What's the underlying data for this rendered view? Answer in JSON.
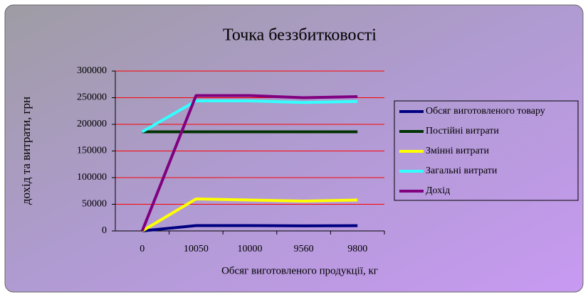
{
  "chart_data": {
    "type": "line",
    "title": "Точка беззбитковості",
    "xlabel": "Обсяг виготовленого продукції, кг",
    "ylabel": "дохід та витрати, грн",
    "categories": [
      "0",
      "10050",
      "10000",
      "9560",
      "9800"
    ],
    "series": [
      {
        "name": "Обсяг виготовленого товару",
        "color": "#000080",
        "values": [
          0,
          10050,
          10000,
          9560,
          9800
        ]
      },
      {
        "name": "Постійні витрати",
        "color": "#003300",
        "values": [
          186000,
          186000,
          186000,
          186000,
          186000
        ]
      },
      {
        "name": "Змінні витрати",
        "color": "#ffff00",
        "values": [
          0,
          60000,
          58000,
          56000,
          58000
        ]
      },
      {
        "name": "Загальні витрати",
        "color": "#33ffff",
        "values": [
          186000,
          244000,
          244000,
          241000,
          243000
        ]
      },
      {
        "name": "Дохід",
        "color": "#800080",
        "values": [
          0,
          254000,
          254000,
          250000,
          252000
        ]
      }
    ],
    "ylim": [
      0,
      300000
    ],
    "yticks": [
      0,
      50000,
      100000,
      150000,
      200000,
      250000,
      300000
    ],
    "grid": true,
    "grid_color": "#ff0000",
    "legend": "right"
  }
}
